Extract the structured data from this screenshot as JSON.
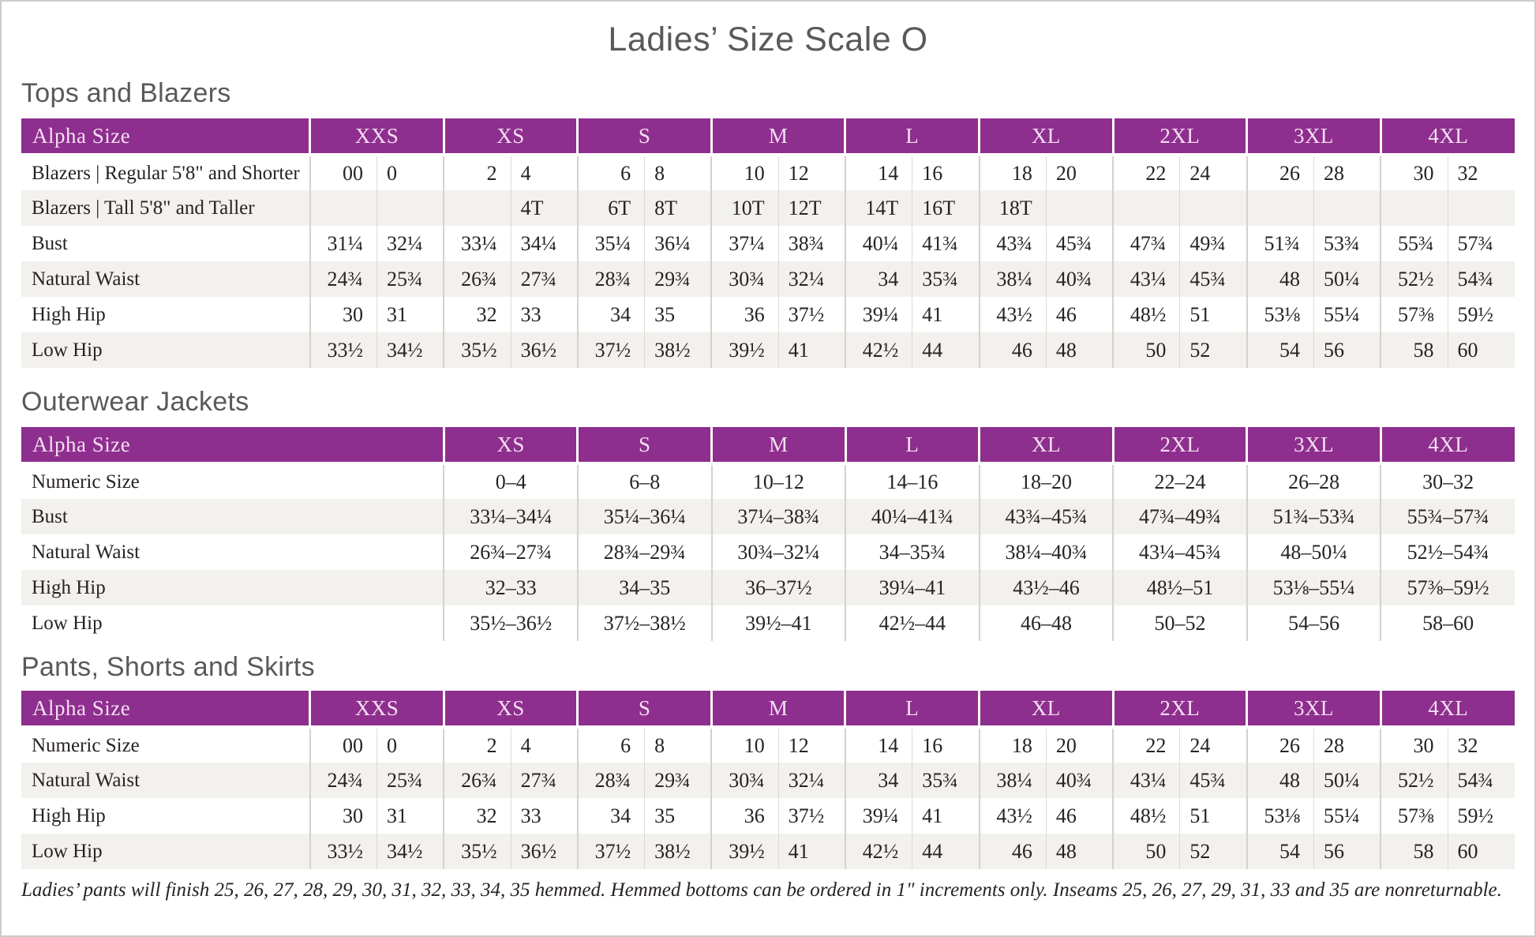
{
  "page": {
    "title": "Ladies’ Size Scale O",
    "footnote": "Ladies’ pants will finish 25, 26, 27, 28, 29, 30, 31, 32, 33, 34, 35 hemmed. Hemmed bottoms can be ordered in 1\" increments only. Inseams 25, 26, 27, 29, 31, 33 and 35 are nonreturnable."
  },
  "colors": {
    "header_purple": "#8e2e8e",
    "header_text": "#f4dff2",
    "stripe": "#f2f1ee",
    "grid": "#dcdad6",
    "grid_strong": "#d4d2ce",
    "heading_gray": "#58595b",
    "text_dark": "#272321"
  },
  "tables": [
    {
      "name": "tops-and-blazers",
      "heading": "Tops and Blazers",
      "header_label": "Alpha Size",
      "split_columns": true,
      "sizes": [
        "XXS",
        "XS",
        "S",
        "M",
        "L",
        "XL",
        "2XL",
        "3XL",
        "4XL"
      ],
      "rows": [
        {
          "label": "Blazers | Regular 5'8\" and Shorter",
          "cells": [
            [
              "00",
              "0"
            ],
            [
              "2",
              "4"
            ],
            [
              "6",
              "8"
            ],
            [
              "10",
              "12"
            ],
            [
              "14",
              "16"
            ],
            [
              "18",
              "20"
            ],
            [
              "22",
              "24"
            ],
            [
              "26",
              "28"
            ],
            [
              "30",
              "32"
            ]
          ]
        },
        {
          "label": "Blazers | Tall 5'8\" and Taller",
          "cells": [
            [
              "",
              ""
            ],
            [
              "",
              "4T"
            ],
            [
              "6T",
              "8T"
            ],
            [
              "10T",
              "12T"
            ],
            [
              "14T",
              "16T"
            ],
            [
              "18T",
              ""
            ],
            [
              "",
              ""
            ],
            [
              "",
              ""
            ],
            [
              "",
              ""
            ]
          ]
        },
        {
          "label": "Bust",
          "cells": [
            [
              "31¼",
              "32¼"
            ],
            [
              "33¼",
              "34¼"
            ],
            [
              "35¼",
              "36¼"
            ],
            [
              "37¼",
              "38¾"
            ],
            [
              "40¼",
              "41¾"
            ],
            [
              "43¾",
              "45¾"
            ],
            [
              "47¾",
              "49¾"
            ],
            [
              "51¾",
              "53¾"
            ],
            [
              "55¾",
              "57¾"
            ]
          ]
        },
        {
          "label": "Natural Waist",
          "cells": [
            [
              "24¾",
              "25¾"
            ],
            [
              "26¾",
              "27¾"
            ],
            [
              "28¾",
              "29¾"
            ],
            [
              "30¾",
              "32¼"
            ],
            [
              "34",
              "35¾"
            ],
            [
              "38¼",
              "40¾"
            ],
            [
              "43¼",
              "45¾"
            ],
            [
              "48",
              "50¼"
            ],
            [
              "52½",
              "54¾"
            ]
          ]
        },
        {
          "label": "High Hip",
          "cells": [
            [
              "30",
              "31"
            ],
            [
              "32",
              "33"
            ],
            [
              "34",
              "35"
            ],
            [
              "36",
              "37½"
            ],
            [
              "39¼",
              "41"
            ],
            [
              "43½",
              "46"
            ],
            [
              "48½",
              "51"
            ],
            [
              "53⅛",
              "55¼"
            ],
            [
              "57⅜",
              "59½"
            ]
          ]
        },
        {
          "label": "Low Hip",
          "cells": [
            [
              "33½",
              "34½"
            ],
            [
              "35½",
              "36½"
            ],
            [
              "37½",
              "38½"
            ],
            [
              "39½",
              "41"
            ],
            [
              "42½",
              "44"
            ],
            [
              "46",
              "48"
            ],
            [
              "50",
              "52"
            ],
            [
              "54",
              "56"
            ],
            [
              "58",
              "60"
            ]
          ]
        }
      ]
    },
    {
      "name": "outerwear-jackets",
      "heading": "Outerwear Jackets",
      "header_label": "Alpha Size",
      "split_columns": false,
      "sizes": [
        "XS",
        "S",
        "M",
        "L",
        "XL",
        "2XL",
        "3XL",
        "4XL"
      ],
      "rows": [
        {
          "label": "Numeric Size",
          "cells": [
            "0–4",
            "6–8",
            "10–12",
            "14–16",
            "18–20",
            "22–24",
            "26–28",
            "30–32"
          ]
        },
        {
          "label": "Bust",
          "cells": [
            "33¼–34¼",
            "35¼–36¼",
            "37¼–38¾",
            "40¼–41¾",
            "43¾–45¾",
            "47¾–49¾",
            "51¾–53¾",
            "55¾–57¾"
          ]
        },
        {
          "label": "Natural Waist",
          "cells": [
            "26¾–27¾",
            "28¾–29¾",
            "30¾–32¼",
            "34–35¾",
            "38¼–40¾",
            "43¼–45¾",
            "48–50¼",
            "52½–54¾"
          ]
        },
        {
          "label": "High Hip",
          "cells": [
            "32–33",
            "34–35",
            "36–37½",
            "39¼–41",
            "43½–46",
            "48½–51",
            "53⅛–55¼",
            "57⅜–59½"
          ]
        },
        {
          "label": "Low Hip",
          "cells": [
            "35½–36½",
            "37½–38½",
            "39½–41",
            "42½–44",
            "46–48",
            "50–52",
            "54–56",
            "58–60"
          ]
        }
      ]
    },
    {
      "name": "pants-shorts-skirts",
      "heading": "Pants, Shorts and Skirts",
      "header_label": "Alpha Size",
      "split_columns": true,
      "sizes": [
        "XXS",
        "XS",
        "S",
        "M",
        "L",
        "XL",
        "2XL",
        "3XL",
        "4XL"
      ],
      "rows": [
        {
          "label": "Numeric Size",
          "cells": [
            [
              "00",
              "0"
            ],
            [
              "2",
              "4"
            ],
            [
              "6",
              "8"
            ],
            [
              "10",
              "12"
            ],
            [
              "14",
              "16"
            ],
            [
              "18",
              "20"
            ],
            [
              "22",
              "24"
            ],
            [
              "26",
              "28"
            ],
            [
              "30",
              "32"
            ]
          ]
        },
        {
          "label": "Natural Waist",
          "cells": [
            [
              "24¾",
              "25¾"
            ],
            [
              "26¾",
              "27¾"
            ],
            [
              "28¾",
              "29¾"
            ],
            [
              "30¾",
              "32¼"
            ],
            [
              "34",
              "35¾"
            ],
            [
              "38¼",
              "40¾"
            ],
            [
              "43¼",
              "45¾"
            ],
            [
              "48",
              "50¼"
            ],
            [
              "52½",
              "54¾"
            ]
          ]
        },
        {
          "label": "High Hip",
          "cells": [
            [
              "30",
              "31"
            ],
            [
              "32",
              "33"
            ],
            [
              "34",
              "35"
            ],
            [
              "36",
              "37½"
            ],
            [
              "39¼",
              "41"
            ],
            [
              "43½",
              "46"
            ],
            [
              "48½",
              "51"
            ],
            [
              "53⅛",
              "55¼"
            ],
            [
              "57⅜",
              "59½"
            ]
          ]
        },
        {
          "label": "Low Hip",
          "cells": [
            [
              "33½",
              "34½"
            ],
            [
              "35½",
              "36½"
            ],
            [
              "37½",
              "38½"
            ],
            [
              "39½",
              "41"
            ],
            [
              "42½",
              "44"
            ],
            [
              "46",
              "48"
            ],
            [
              "50",
              "52"
            ],
            [
              "54",
              "56"
            ],
            [
              "58",
              "60"
            ]
          ]
        }
      ]
    }
  ]
}
